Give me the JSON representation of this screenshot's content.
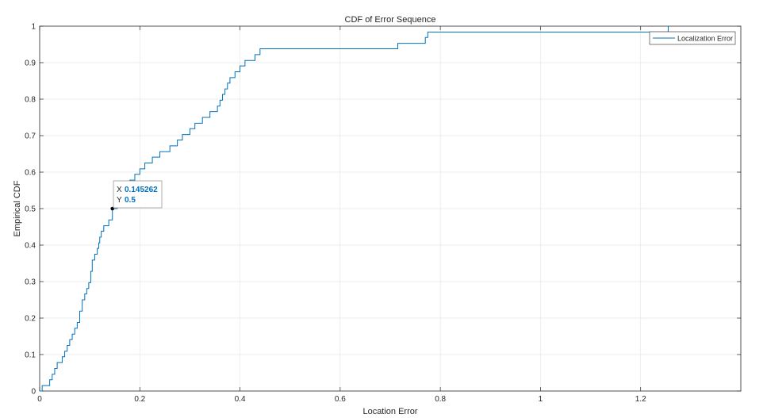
{
  "chart_data": {
    "type": "line",
    "style": "stairs",
    "title": "CDF of Error Sequence",
    "xlabel": "Location Error",
    "ylabel": "Empirical CDF",
    "xlim": [
      0,
      1.4
    ],
    "ylim": [
      0,
      1
    ],
    "x_ticks": [
      "0",
      "0.2",
      "0.4",
      "0.6",
      "0.8",
      "1",
      "1.2"
    ],
    "x_tick_values": [
      0,
      0.2,
      0.4,
      0.6,
      0.8,
      1.0,
      1.2
    ],
    "y_ticks": [
      "0",
      "0.1",
      "0.2",
      "0.3",
      "0.4",
      "0.5",
      "0.6",
      "0.7",
      "0.8",
      "0.9",
      "1"
    ],
    "y_tick_values": [
      0,
      0.1,
      0.2,
      0.3,
      0.4,
      0.5,
      0.6,
      0.7,
      0.8,
      0.9,
      1.0
    ],
    "grid": true,
    "legend_position": "top-right",
    "series": [
      {
        "name": "Localization Error",
        "color": "#0072bd",
        "x": [
          0.005,
          0.02,
          0.025,
          0.03,
          0.035,
          0.045,
          0.05,
          0.055,
          0.06,
          0.065,
          0.07,
          0.075,
          0.08,
          0.085,
          0.09,
          0.094,
          0.098,
          0.102,
          0.105,
          0.11,
          0.115,
          0.118,
          0.12,
          0.123,
          0.128,
          0.138,
          0.145262,
          0.155,
          0.16,
          0.17,
          0.18,
          0.19,
          0.2,
          0.21,
          0.225,
          0.24,
          0.26,
          0.275,
          0.285,
          0.3,
          0.31,
          0.325,
          0.34,
          0.355,
          0.36,
          0.365,
          0.37,
          0.375,
          0.38,
          0.39,
          0.4,
          0.41,
          0.43,
          0.44,
          0.46,
          0.48,
          0.485,
          0.5,
          0.52,
          0.54,
          0.6,
          0.7,
          0.715,
          0.77,
          0.775,
          1.0,
          1.255
        ],
        "y": [
          0.015,
          0.031,
          0.046,
          0.062,
          0.078,
          0.094,
          0.109,
          0.125,
          0.141,
          0.156,
          0.172,
          0.188,
          0.219,
          0.25,
          0.266,
          0.281,
          0.297,
          0.328,
          0.359,
          0.375,
          0.391,
          0.406,
          0.422,
          0.438,
          0.453,
          0.469,
          0.5,
          0.516,
          0.531,
          0.563,
          0.578,
          0.594,
          0.609,
          0.625,
          0.641,
          0.656,
          0.672,
          0.688,
          0.703,
          0.719,
          0.734,
          0.75,
          0.766,
          0.781,
          0.797,
          0.813,
          0.828,
          0.844,
          0.859,
          0.875,
          0.891,
          0.906,
          0.922,
          0.938,
          0.938,
          0.938,
          0.938,
          0.938,
          0.938,
          0.938,
          0.938,
          0.938,
          0.953,
          0.969,
          0.984,
          0.984,
          1.0
        ]
      }
    ],
    "datatip": {
      "x_key": "X",
      "y_key": "Y",
      "x_value": "0.145262",
      "y_value": "0.5",
      "x": 0.145262,
      "y": 0.5
    }
  }
}
